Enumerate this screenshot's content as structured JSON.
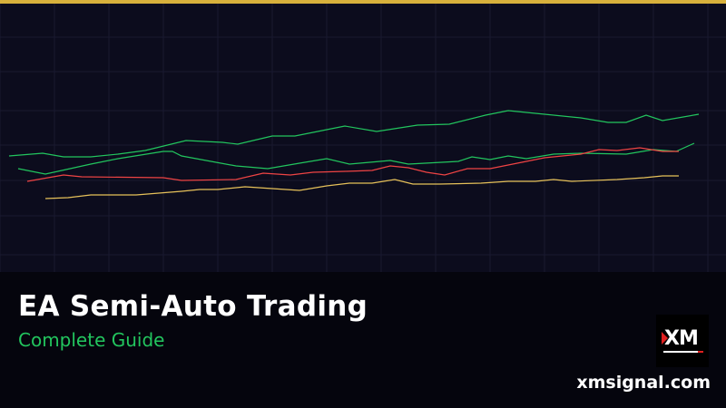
{
  "header": {
    "accent_color": "#d8b13c"
  },
  "title": "EA Semi-Auto Trading",
  "subtitle": "Complete Guide",
  "subtitle_color": "#22c55e",
  "logo": {
    "text": "XM",
    "icon": "xm-logo"
  },
  "website": "xmsignal.com",
  "line_colors": [
    "#22c55e",
    "#22c55e",
    "#ef4444",
    "#e6c15a"
  ]
}
